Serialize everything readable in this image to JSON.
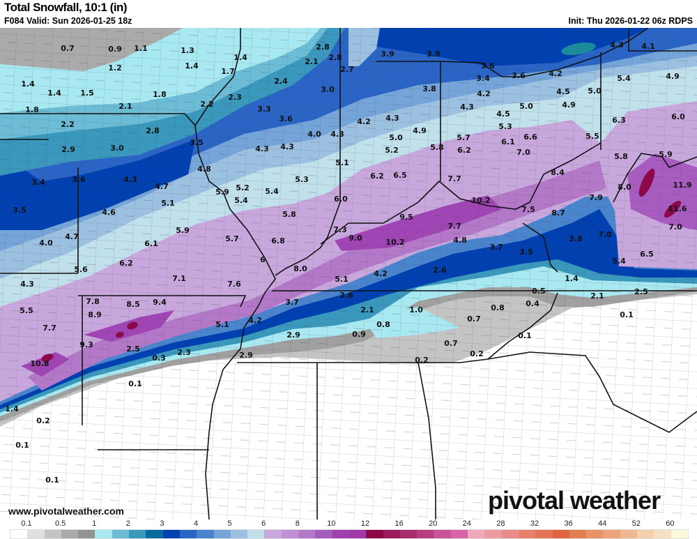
{
  "header": {
    "title": "Total Snowfall, 10:1 (in)",
    "valid": "F084 Valid: Sun 2026-01-25 18z",
    "init": "Init: Thu 2026-01-22 06z RDPS"
  },
  "footer": {
    "website": "www.pivotalweather.com",
    "brand": "pivotal weather"
  },
  "legend": {
    "tick_labels": [
      "0.1",
      "0.5",
      "1",
      "2",
      "3",
      "4",
      "5",
      "6",
      "8",
      "10",
      "12",
      "16",
      "20",
      "24",
      "28",
      "32",
      "36",
      "44",
      "52",
      "60"
    ],
    "colors": [
      "#ffffff",
      "#e0e0e0",
      "#c4c4c4",
      "#aaaaaa",
      "#939393",
      "#a8e8f0",
      "#6cbcd6",
      "#3a98bc",
      "#0a6c9c",
      "#0040b0",
      "#2a64c4",
      "#4a84cc",
      "#74a4d8",
      "#9cc0e0",
      "#c0e0ec",
      "#c8a8dc",
      "#c090d4",
      "#b478c8",
      "#a45cbc",
      "#a040b0",
      "#a038a8",
      "#8c0848",
      "#9a1a5c",
      "#a82c6c",
      "#b83c80",
      "#c85498",
      "#d864a8",
      "#f0a8bc",
      "#ec9ca0",
      "#e88c8c",
      "#e8806c",
      "#e47458",
      "#e06444",
      "#e08050",
      "#e89468",
      "#eca47c",
      "#f0b890",
      "#f4d0ac",
      "#f6e0c4",
      "#fcf8dc"
    ]
  },
  "map": {
    "units": "in",
    "point_values": [
      "0.7",
      "0.9",
      "1.1",
      "1.3",
      "1.2",
      "1.4",
      "1.4",
      "1.7",
      "1.4",
      "1.4",
      "1.5",
      "1.8",
      "2.1",
      "2.2",
      "2.3",
      "2.4",
      "2.1",
      "2.8",
      "2.8",
      "2.7",
      "3.0",
      "1.8",
      "2.2",
      "2.8",
      "3.3",
      "3.6",
      "3.5",
      "2.9",
      "3.0",
      "4.0",
      "4.3",
      "4.3",
      "4.3",
      "4.8",
      "3.4",
      "3.6",
      "4.3",
      "4.7",
      "5.9",
      "5.2",
      "5.4",
      "5.3",
      "5.1",
      "5.4",
      "3.5",
      "4.6",
      "5.8",
      "6.0",
      "5.1",
      "4.2",
      "4.3",
      "4.9",
      "5.0",
      "5.2",
      "5.8",
      "6.2",
      "6.5",
      "3.9",
      "3.9",
      "3.8",
      "3.6",
      "3.4",
      "3.6",
      "4.2",
      "4.3",
      "4.2",
      "4.5",
      "5.0",
      "4.9",
      "5.0",
      "4.3",
      "4.1",
      "5.4",
      "4.9",
      "4.5",
      "5.3",
      "5.7",
      "6.1",
      "6.6",
      "6.2",
      "7.0",
      "5.5",
      "6.3",
      "6.0",
      "5.8",
      "5.9",
      "7.7",
      "8.4",
      "8.0",
      "11.9",
      "10.2",
      "7.9",
      "11.6",
      "7.5",
      "8.7",
      "9.5",
      "7.7",
      "7.0",
      "7.3",
      "9.0",
      "10.2",
      "4.8",
      "3.7",
      "3.5",
      "3.8",
      "7.0",
      "6.5",
      "5.4",
      "4.0",
      "4.7",
      "5.9",
      "5.7",
      "6.8",
      "6.1",
      "6",
      "8.0",
      "6.2",
      "7.1",
      "7.6",
      "5.6",
      "4.3",
      "5.1",
      "4.2",
      "2.6",
      "1.4",
      "0.5",
      "2.1",
      "2.5",
      "0.4",
      "0.1",
      "7.8",
      "8.5",
      "9.4",
      "8.9",
      "5.5",
      "3.7",
      "2.6",
      "2.1",
      "1.0",
      "0.8",
      "0.7",
      "7.7",
      "5.1",
      "4.2",
      "0.8",
      "2.9",
      "0.9",
      "0.1",
      "9.3",
      "2.5",
      "2.3",
      "0.7",
      "0.3",
      "2.9",
      "0.2",
      "0.2",
      "10.8",
      "0.1",
      "1.4",
      "0.2",
      "0.1",
      "0.1"
    ]
  }
}
